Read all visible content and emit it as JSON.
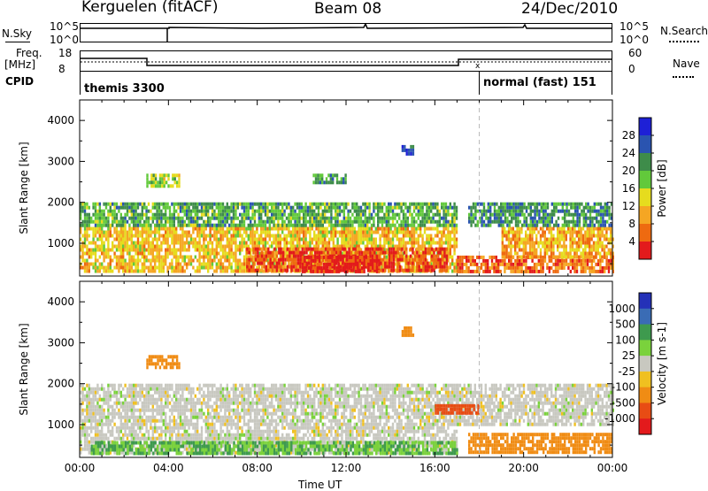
{
  "header": {
    "station": "Kerguelen (fitACF)",
    "beam": "Beam 08",
    "date": "24/Dec/2010"
  },
  "top_panels": {
    "nsky_label": "N.Sky",
    "nsky_ticks": [
      "10^5",
      "10^0"
    ],
    "nsearch_label": "N.Search",
    "nsearch_ticks": [
      "10^5",
      "10^0"
    ],
    "freq_label_1": "Freq.",
    "freq_label_2": "[MHz]",
    "freq_ticks": [
      "18",
      "8"
    ],
    "nave_label": "Nave",
    "nave_ticks": [
      "60",
      "0"
    ],
    "cpid_label": "CPID",
    "cpid_modes": [
      "themis 3300",
      "normal (fast) 151"
    ]
  },
  "colors": {
    "power_scale": [
      "#1e20d6",
      "#2a54b0",
      "#3e8c4a",
      "#62c93b",
      "#e6dc1e",
      "#f5a623",
      "#ee6a10",
      "#e31a1c"
    ],
    "velocity_scale": [
      "#2431b8",
      "#3a6cb5",
      "#3e9a4e",
      "#7ad23c",
      "#c8c8c0",
      "#f0c020",
      "#f08c14",
      "#e84c14",
      "#e31a1c"
    ]
  },
  "chart_data": [
    {
      "type": "heatmap",
      "title": "Power",
      "xlabel": "Time UT",
      "ylabel": "Slant Range [km]",
      "x_ticks": [
        "00:00",
        "04:00",
        "08:00",
        "12:00",
        "16:00",
        "20:00",
        "00:00"
      ],
      "y_ticks": [
        "1000",
        "2000",
        "3000",
        "4000"
      ],
      "ylim": [
        200,
        4500
      ],
      "colorbar_label": "Power [dB]",
      "colorbar_ticks": [
        "4",
        "8",
        "12",
        "16",
        "20",
        "24",
        "28"
      ],
      "colorbar_range": [
        0,
        32
      ],
      "regions": [
        {
          "t_start": 0.0,
          "t_end": 17.0,
          "r_start": 300,
          "r_end": 1400,
          "level": 20
        },
        {
          "t_start": 7.5,
          "t_end": 16.5,
          "r_start": 300,
          "r_end": 900,
          "level": 28
        },
        {
          "t_start": 10.0,
          "t_end": 13.5,
          "r_start": 300,
          "r_end": 700,
          "level": 30
        },
        {
          "t_start": 0.0,
          "t_end": 17.0,
          "r_start": 1400,
          "r_end": 2000,
          "level": 12
        },
        {
          "t_start": 17.0,
          "t_end": 24.0,
          "r_start": 300,
          "r_end": 700,
          "level": 26
        },
        {
          "t_start": 19.0,
          "t_end": 24.0,
          "r_start": 700,
          "r_end": 1400,
          "level": 22
        },
        {
          "t_start": 17.5,
          "t_end": 24.0,
          "r_start": 1400,
          "r_end": 2000,
          "level": 10
        },
        {
          "t_start": 3.0,
          "t_end": 4.5,
          "r_start": 2400,
          "r_end": 2700,
          "level": 16
        },
        {
          "t_start": 10.5,
          "t_end": 12.0,
          "r_start": 2500,
          "r_end": 2700,
          "level": 10
        },
        {
          "t_start": 14.5,
          "t_end": 15.0,
          "r_start": 3200,
          "r_end": 3400,
          "level": 6
        }
      ]
    },
    {
      "type": "heatmap",
      "title": "Velocity",
      "xlabel": "Time UT",
      "ylabel": "Slant Range [km]",
      "x_ticks": [
        "00:00",
        "04:00",
        "08:00",
        "12:00",
        "16:00",
        "20:00",
        "00:00"
      ],
      "y_ticks": [
        "1000",
        "2000",
        "3000",
        "4000"
      ],
      "ylim": [
        200,
        4500
      ],
      "colorbar_label": "Velocity [m s-1]",
      "colorbar_ticks": [
        "1000",
        "500",
        "100",
        "25",
        "-25",
        "-100",
        "-500",
        "-1000"
      ],
      "regions": [
        {
          "t_start": 0.0,
          "t_end": 17.0,
          "r_start": 300,
          "r_end": 2000,
          "level": 0
        },
        {
          "t_start": 17.0,
          "t_end": 24.0,
          "r_start": 1000,
          "r_end": 2000,
          "level": 0
        },
        {
          "t_start": 17.5,
          "t_end": 24.0,
          "r_start": 300,
          "r_end": 800,
          "level": -150
        },
        {
          "t_start": 3.0,
          "t_end": 4.5,
          "r_start": 2400,
          "r_end": 2700,
          "level": -150
        },
        {
          "t_start": 14.5,
          "t_end": 15.0,
          "r_start": 3200,
          "r_end": 3400,
          "level": -150
        },
        {
          "t_start": 0.5,
          "t_end": 17.0,
          "r_start": 300,
          "r_end": 600,
          "level": 60
        },
        {
          "t_start": 16.0,
          "t_end": 18.0,
          "r_start": 1300,
          "r_end": 1500,
          "level": -600
        }
      ]
    }
  ]
}
